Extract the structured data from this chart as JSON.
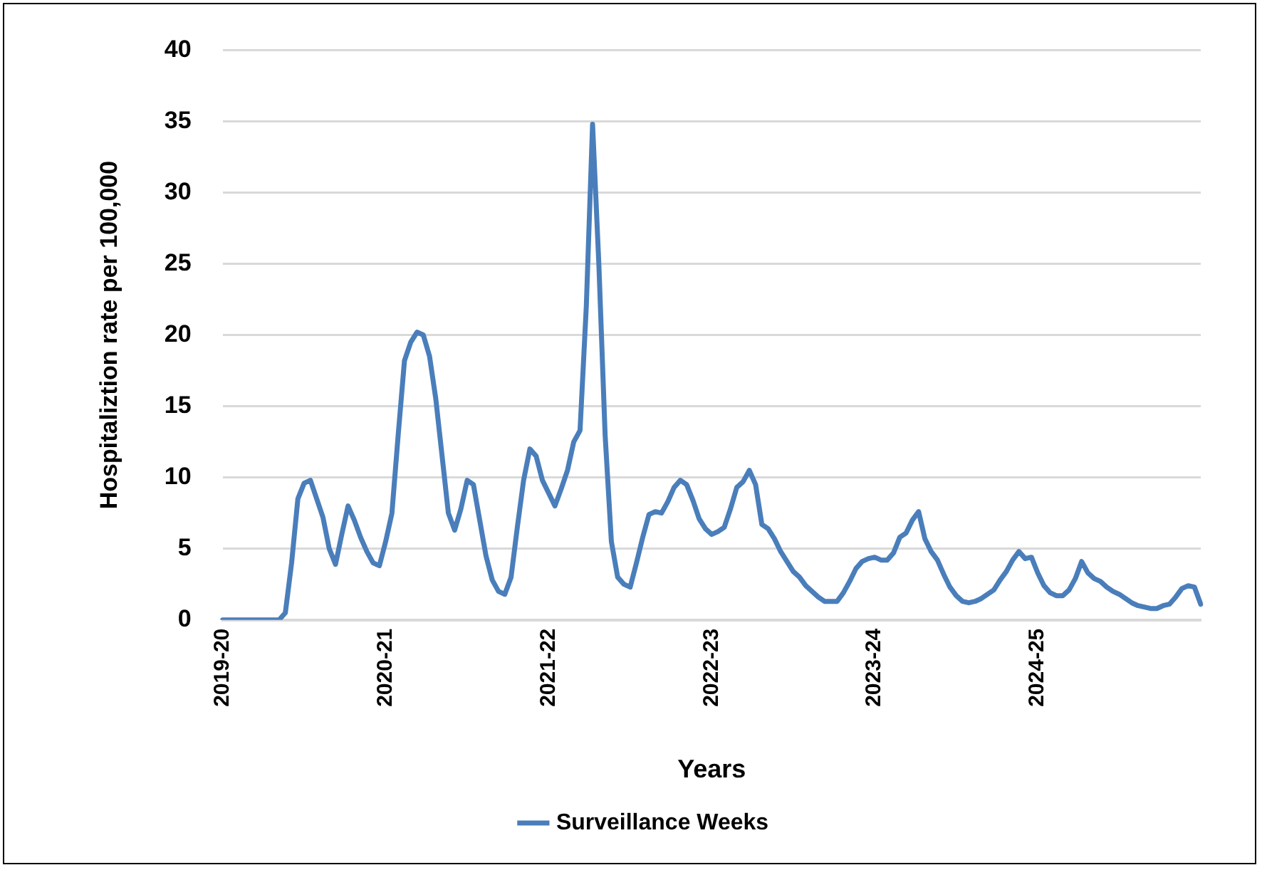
{
  "chart_data": {
    "type": "line",
    "xlabel": "Years",
    "ylabel": "Hospitaliztion rate per 100,000",
    "categories": [
      "2019-20",
      null,
      null,
      null,
      null,
      null,
      null,
      null,
      null,
      null,
      null,
      null,
      null,
      null,
      null,
      null,
      null,
      null,
      null,
      null,
      null,
      null,
      null,
      null,
      null,
      null,
      "2020-21",
      null,
      null,
      null,
      null,
      null,
      null,
      null,
      null,
      null,
      null,
      null,
      null,
      null,
      null,
      null,
      null,
      null,
      null,
      null,
      null,
      null,
      null,
      null,
      null,
      null,
      "2021-22",
      null,
      null,
      null,
      null,
      null,
      null,
      null,
      null,
      null,
      null,
      null,
      null,
      null,
      null,
      null,
      null,
      null,
      null,
      null,
      null,
      null,
      null,
      null,
      null,
      null,
      "2022-23",
      null,
      null,
      null,
      null,
      null,
      null,
      null,
      null,
      null,
      null,
      null,
      null,
      null,
      null,
      null,
      null,
      null,
      null,
      null,
      null,
      null,
      null,
      null,
      null,
      null,
      "2023-24",
      null,
      null,
      null,
      null,
      null,
      null,
      null,
      null,
      null,
      null,
      null,
      null,
      null,
      null,
      null,
      null,
      null,
      null,
      null,
      null,
      null,
      null,
      null,
      null,
      null,
      "2024-25",
      null,
      null,
      null,
      null,
      null,
      null,
      null,
      null,
      null,
      null,
      null,
      null,
      null,
      null,
      null,
      null,
      null,
      null,
      null,
      null,
      null,
      null,
      null,
      null,
      null,
      null
    ],
    "series": [
      {
        "name": "Surveillance Weeks",
        "color": "#4a7ebb",
        "values": [
          0,
          0,
          0,
          0,
          0,
          0,
          0,
          0,
          0,
          0,
          0.5,
          4,
          8.5,
          9.6,
          9.8,
          8.5,
          7.2,
          5,
          3.9,
          6,
          8,
          7,
          5.8,
          4.8,
          4,
          3.8,
          5.5,
          7.5,
          13,
          18.2,
          19.5,
          20.2,
          20,
          18.5,
          15.5,
          11.5,
          7.5,
          6.3,
          7.8,
          9.8,
          9.5,
          7,
          4.5,
          2.8,
          2,
          1.8,
          3,
          6.5,
          9.8,
          12,
          11.5,
          9.8,
          8.9,
          8,
          9.2,
          10.5,
          12.5,
          13.3,
          22,
          34.8,
          25,
          13,
          5.5,
          3,
          2.5,
          2.3,
          4,
          5.8,
          7.4,
          7.6,
          7.5,
          8.3,
          9.3,
          9.8,
          9.5,
          8.4,
          7.1,
          6.4,
          6,
          6.2,
          6.5,
          7.8,
          9.3,
          9.7,
          10.5,
          9.5,
          6.7,
          6.4,
          5.7,
          4.8,
          4.1,
          3.4,
          3,
          2.4,
          2,
          1.6,
          1.3,
          1.3,
          1.3,
          1.9,
          2.7,
          3.6,
          4.1,
          4.3,
          4.4,
          4.2,
          4.2,
          4.7,
          5.8,
          6.1,
          7,
          7.6,
          5.7,
          4.8,
          4.2,
          3.2,
          2.3,
          1.7,
          1.3,
          1.2,
          1.3,
          1.5,
          1.8,
          2.1,
          2.8,
          3.4,
          4.2,
          4.8,
          4.3,
          4.4,
          3.3,
          2.4,
          1.9,
          1.7,
          1.7,
          2.1,
          2.9,
          4.1,
          3.3,
          2.9,
          2.7,
          2.3,
          2,
          1.8,
          1.5,
          1.2,
          1,
          0.9,
          0.8,
          0.8,
          1,
          1.1,
          1.6,
          2.2,
          2.4,
          2.3,
          1.1
        ]
      }
    ],
    "ylim": [
      0,
      40
    ],
    "yticks": [
      0,
      5,
      10,
      15,
      20,
      25,
      30,
      35,
      40
    ],
    "grid": "y",
    "legend": "bottom"
  }
}
